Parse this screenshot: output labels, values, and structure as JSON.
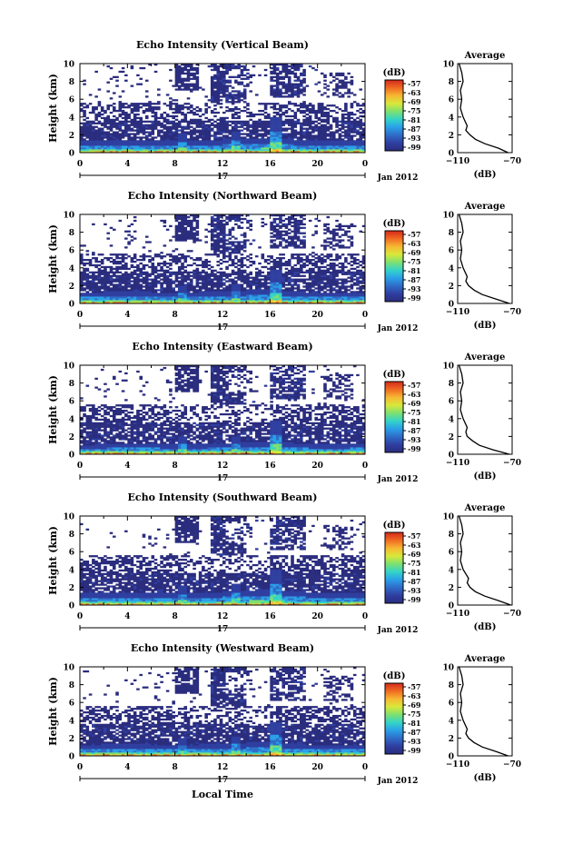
{
  "colors": {
    "background": "#ffffff",
    "axis": "#000000",
    "colormap": [
      "#2a2c7e",
      "#2f3fa0",
      "#2f6cc8",
      "#2aa0e8",
      "#33d4c8",
      "#7ee070",
      "#d8e83a",
      "#f7b733",
      "#f06a22",
      "#d42a1c"
    ]
  },
  "panel_common": {
    "ylabel": "Height (km)",
    "x_ticks": [
      "0",
      "4",
      "8",
      "12",
      "16",
      "20",
      "0"
    ],
    "y_ticks": [
      "0",
      "2",
      "4",
      "6",
      "8",
      "10"
    ],
    "date_marker": "17",
    "month_label": "Jan 2012",
    "colorbar_unit": "(dB)",
    "colorbar_ticks": [
      "-57",
      "-63",
      "-69",
      "-75",
      "-81",
      "-87",
      "-93",
      "-99"
    ],
    "avg_title": "Average",
    "avg_x_ticks": [
      "−110",
      "−70"
    ],
    "avg_unit": "(dB)"
  },
  "xlabel": "Local Time",
  "chart_data": [
    {
      "type": "heatmap",
      "title": "Echo Intensity (Vertical Beam)",
      "beam": "Vertical",
      "x_unit": "local time (h)",
      "xlim": [
        0,
        24
      ],
      "ylim": [
        0,
        10
      ],
      "clim": [
        -99,
        -57
      ],
      "surface_layer": [
        [
          0,
          1.3
        ],
        [
          4,
          1.5
        ],
        [
          8,
          1.3
        ],
        [
          12,
          1.5
        ],
        [
          16,
          1.7
        ],
        [
          20,
          1.3
        ],
        [
          24,
          1.4
        ]
      ],
      "average_profile": {
        "height": [
          0,
          0.5,
          1,
          1.5,
          2,
          2.5,
          3,
          4,
          5,
          6,
          7,
          8,
          9,
          10
        ],
        "db": [
          -73,
          -80,
          -90,
          -97,
          -101,
          -104,
          -103,
          -106,
          -108,
          -107,
          -108,
          -106,
          -107,
          -109
        ],
        "xlim": [
          -110,
          -70
        ]
      }
    },
    {
      "type": "heatmap",
      "title": "Echo Intensity (Northward Beam)",
      "beam": "Northward",
      "x_unit": "local time (h)",
      "xlim": [
        0,
        24
      ],
      "ylim": [
        0,
        10
      ],
      "clim": [
        -99,
        -57
      ],
      "surface_layer": [
        [
          0,
          1.2
        ],
        [
          4,
          1.4
        ],
        [
          8,
          1.2
        ],
        [
          12,
          1.4
        ],
        [
          16,
          1.6
        ],
        [
          20,
          1.2
        ],
        [
          24,
          1.3
        ]
      ],
      "average_profile": {
        "height": [
          0,
          0.5,
          1,
          1.5,
          2,
          2.5,
          3,
          4,
          5,
          6,
          7,
          8,
          9,
          10
        ],
        "db": [
          -72,
          -82,
          -92,
          -98,
          -102,
          -104,
          -103,
          -106,
          -108,
          -107,
          -108,
          -106,
          -107,
          -109
        ],
        "xlim": [
          -110,
          -70
        ]
      }
    },
    {
      "type": "heatmap",
      "title": "Echo Intensity (Eastward Beam)",
      "beam": "Eastward",
      "x_unit": "local time (h)",
      "xlim": [
        0,
        24
      ],
      "ylim": [
        0,
        10
      ],
      "clim": [
        -99,
        -57
      ],
      "surface_layer": [
        [
          0,
          1.0
        ],
        [
          4,
          1.3
        ],
        [
          8,
          1.1
        ],
        [
          12,
          1.2
        ],
        [
          16,
          1.5
        ],
        [
          20,
          1.1
        ],
        [
          24,
          1.2
        ]
      ],
      "average_profile": {
        "height": [
          0,
          0.5,
          1,
          1.5,
          2,
          2.5,
          3,
          4,
          5,
          6,
          7,
          8,
          9,
          10
        ],
        "db": [
          -72,
          -84,
          -94,
          -99,
          -103,
          -104,
          -103,
          -106,
          -108,
          -107,
          -108,
          -106,
          -107,
          -109
        ],
        "xlim": [
          -110,
          -70
        ]
      }
    },
    {
      "type": "heatmap",
      "title": "Echo Intensity (Southward Beam)",
      "beam": "Southward",
      "x_unit": "local time (h)",
      "xlim": [
        0,
        24
      ],
      "ylim": [
        0,
        10
      ],
      "clim": [
        -99,
        -57
      ],
      "surface_layer": [
        [
          0,
          1.4
        ],
        [
          4,
          1.5
        ],
        [
          8,
          1.3
        ],
        [
          12,
          1.5
        ],
        [
          16,
          1.8
        ],
        [
          20,
          1.4
        ],
        [
          24,
          1.4
        ]
      ],
      "average_profile": {
        "height": [
          0,
          0.5,
          1,
          1.5,
          2,
          2.5,
          3,
          4,
          5,
          6,
          7,
          8,
          9,
          10
        ],
        "db": [
          -71,
          -80,
          -90,
          -97,
          -101,
          -103,
          -102,
          -106,
          -108,
          -107,
          -108,
          -106,
          -107,
          -109
        ],
        "xlim": [
          -110,
          -70
        ]
      }
    },
    {
      "type": "heatmap",
      "title": "Echo Intensity (Westward Beam)",
      "beam": "Westward",
      "x_unit": "local time (h)",
      "xlim": [
        0,
        24
      ],
      "ylim": [
        0,
        10
      ],
      "clim": [
        -99,
        -57
      ],
      "surface_layer": [
        [
          0,
          1.2
        ],
        [
          4,
          1.4
        ],
        [
          8,
          1.2
        ],
        [
          12,
          1.4
        ],
        [
          16,
          1.6
        ],
        [
          20,
          1.2
        ],
        [
          24,
          1.3
        ]
      ],
      "average_profile": {
        "height": [
          0,
          0.5,
          1,
          1.5,
          2,
          2.5,
          3,
          4,
          5,
          6,
          7,
          8,
          9,
          10
        ],
        "db": [
          -73,
          -82,
          -92,
          -98,
          -102,
          -104,
          -103,
          -106,
          -108,
          -107,
          -108,
          -106,
          -107,
          -109
        ],
        "xlim": [
          -110,
          -70
        ]
      }
    }
  ]
}
